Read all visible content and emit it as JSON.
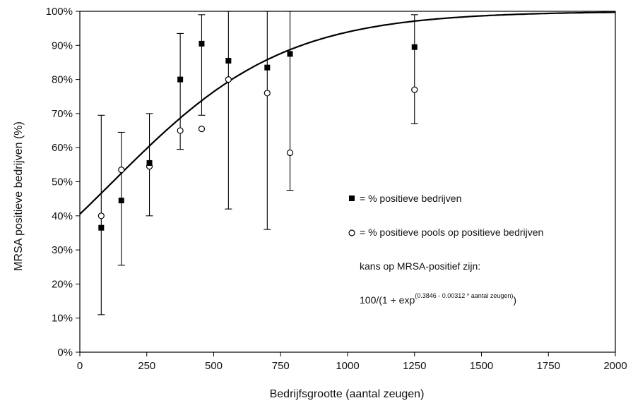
{
  "chart_data": {
    "type": "scatter",
    "title": "",
    "xlabel": "Bedrijfsgrootte (aantal zeugen)",
    "ylabel": "MRSA positieve bedrijven (%)",
    "xlim": [
      0,
      2000
    ],
    "ylim": [
      0,
      100
    ],
    "x_ticks": [
      "0",
      "250",
      "500",
      "750",
      "1000",
      "1250",
      "1500",
      "1750",
      "2000"
    ],
    "y_ticks": [
      "0%",
      "10%",
      "20%",
      "30%",
      "40%",
      "50%",
      "60%",
      "70%",
      "80%",
      "90%",
      "100%"
    ],
    "grid": false,
    "legend_position": "right-center",
    "series": [
      {
        "name": "= % positieve bedrijven",
        "marker": "filled-square",
        "points": [
          {
            "x": 80,
            "y": 36.5,
            "err_low": 11,
            "err_high": 69.5
          },
          {
            "x": 155,
            "y": 44.5,
            "err_low": 25.5,
            "err_high": 64.5
          },
          {
            "x": 260,
            "y": 55.5,
            "err_low": 40,
            "err_high": 70
          },
          {
            "x": 375,
            "y": 80,
            "err_low": 59.5,
            "err_high": 93.5
          },
          {
            "x": 455,
            "y": 90.5,
            "err_low": 69.5,
            "err_high": 99
          },
          {
            "x": 555,
            "y": 85.5,
            "err_low": 42,
            "err_high": 100
          },
          {
            "x": 700,
            "y": 83.5,
            "err_low": 36,
            "err_high": 100
          },
          {
            "x": 785,
            "y": 87.5,
            "err_low": 47.5,
            "err_high": 100
          },
          {
            "x": 1250,
            "y": 89.5,
            "err_low": 67,
            "err_high": 99
          }
        ]
      },
      {
        "name": "= % positieve pools op positieve bedrijven",
        "marker": "open-circle",
        "points": [
          {
            "x": 80,
            "y": 40
          },
          {
            "x": 155,
            "y": 53.5
          },
          {
            "x": 260,
            "y": 54.5
          },
          {
            "x": 375,
            "y": 65
          },
          {
            "x": 455,
            "y": 65.5
          },
          {
            "x": 555,
            "y": 80
          },
          {
            "x": 700,
            "y": 76
          },
          {
            "x": 785,
            "y": 58.5
          },
          {
            "x": 1250,
            "y": 77
          }
        ]
      }
    ],
    "curve": {
      "formula": "100/(1 + exp(0.3846 - 0.00312 * aantal zeugen))",
      "a": 0.3846,
      "b": 0.00312
    },
    "annotation": {
      "line1": "kans op MRSA-positief zijn:",
      "formula_main": "100/(1 + exp",
      "formula_sup": "(0.3846 - 0.00312 * aantal zeugen)",
      "formula_end": ")"
    }
  }
}
